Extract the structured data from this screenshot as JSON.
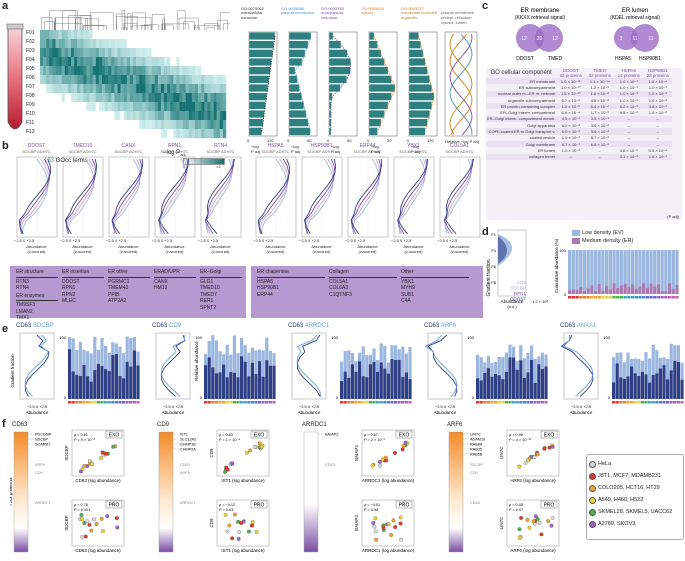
{
  "panels": {
    "a": "a",
    "b": "b",
    "c": "c",
    "d": "d",
    "e": "e",
    "f": "f"
  },
  "panel_a": {
    "fractions": [
      "F01",
      "F02",
      "F03",
      "F04",
      "F05",
      "F06",
      "F07",
      "F08",
      "F09",
      "F10",
      "F11",
      "F12"
    ],
    "heatmap_caption_count": "153",
    "heatmap_caption": " GOcc terms",
    "colorbar_label": "−log P",
    "colorbar_sub": "adj",
    "colorbar_min": "0",
    "colorbar_max": ">2",
    "go_terms": [
      {
        "id": "GO:0070062",
        "name": "extracellular exosome",
        "color": "#333333"
      },
      {
        "id": "GO:0005886",
        "name": "plasma membrane",
        "color": "#4a90c8"
      },
      {
        "id": "GO:0005783",
        "name": "endoplasmic reticulum",
        "color": "#7a4fa3"
      },
      {
        "id": "GO:0005829",
        "name": "cytosol",
        "color": "#e07b1f"
      },
      {
        "id": "GO:0043227",
        "name": "membrane-bounded organelle",
        "color": "#b8871a"
      },
      {
        "id": "overlay",
        "name": "plasma membrane endopl. reticulum cytosol, lumen",
        "color": "#666666"
      }
    ],
    "axis_label": "−log",
    "axis_sub": "P",
    "axis_sub2": "adj",
    "ticks": [
      [
        "0",
        "120"
      ],
      [
        "0",
        "40"
      ],
      [
        "0",
        "40"
      ],
      [
        "0",
        "20"
      ],
      [
        "0",
        "120"
      ]
    ],
    "relative_label": "Relative −log",
    "relative_sub": "P adj"
  },
  "panel_b": {
    "ylabel": "Gradient fraction",
    "xlabel": "Abundance",
    "xlabel_sub": "(z-scored)",
    "xticks": [
      "−2.5",
      "0",
      "+2.5"
    ],
    "legend": [
      "SDCBP",
      "ADH7C"
    ],
    "left_proteins": [
      "DDOST",
      "TMED10",
      "CANX",
      "RPN1",
      "RTN4"
    ],
    "right_proteins": [
      "HSPA5",
      "HSP90B1",
      "ERP44",
      "YBX1",
      "COL5A1"
    ],
    "left_groups": [
      {
        "title": "ER structure",
        "items": [
          "RTN3",
          "RTN4",
          "",
          "TM9SF3",
          "LMAN2",
          "TMX1"
        ]
      },
      {
        "title": "ER insertion",
        "items": [
          "DDOST",
          "RPN1",
          "RPN2",
          "MLEC"
        ]
      },
      {
        "title": "ER other",
        "items": [
          "PGRMC1",
          "TMEM43",
          "PPIB",
          "ATP2A2"
        ]
      },
      {
        "title": "ERAD/UPR",
        "items": [
          "CANX",
          "HM13"
        ]
      },
      {
        "title": "ER–Golgi",
        "items": [
          "GLG1",
          "TMED10",
          "TMED7",
          "RER1",
          "SPNT2"
        ]
      }
    ],
    "ER_enzymes_title": "ER enzymes",
    "right_groups": [
      {
        "title": "ER chaperone",
        "items": [
          "HSPA5",
          "HSP90B1",
          "ERP44"
        ]
      },
      {
        "title": "Collagen",
        "items": [
          "COL5A1",
          "COL6A3",
          "C1QTNF3"
        ]
      },
      {
        "title": "Other",
        "items": [
          "YBX1",
          "MYH9",
          "SUB1",
          "C4A"
        ]
      }
    ]
  },
  "panel_c": {
    "venn_left_title": "ER membrane",
    "venn_left_sub": "(KKXX retrieval signal)",
    "venn_right_title": "ER lumen",
    "venn_right_sub": "(KDEL retrieval signal)",
    "venn_left_values": [
      "12",
      "20",
      "12"
    ],
    "venn_left_labels": [
      "DDOST",
      "TMED"
    ],
    "venn_right_values": [
      "3",
      "11",
      "11"
    ],
    "venn_right_labels": [
      "HSPA5",
      "HSP90B1"
    ],
    "table_title": "GO cellular component",
    "columns": [
      {
        "name": "DDOST",
        "sub": "32 proteins"
      },
      {
        "name": "TMED",
        "sub": "32 proteins"
      },
      {
        "name": "HSPA5",
        "sub": "14 proteins"
      },
      {
        "name": "HSP90B1",
        "sub": "22 proteins"
      }
    ],
    "rows": [
      {
        "label": "ER membrane",
        "vals": [
          "1.0 × 10⁻¹⁶",
          "1.1 × 10⁻¹⁴",
          "1.0 × 10⁻³",
          "1.0 × 10⁻⁴"
        ]
      },
      {
        "label": "ER subcompartment",
        "vals": [
          "1.0 × 10⁻¹⁰",
          "1.2 × 10⁻⁸",
          "1.0 × 10⁻³",
          "1.0 × 10⁻³"
        ]
      },
      {
        "label": "nuclear outer m.–ER m. network",
        "vals": [
          "1.5 × 10⁻¹⁰",
          "1.6 × 10⁻⁸",
          "1.0 × 10⁻³",
          "1.0 × 10⁻³"
        ]
      },
      {
        "label": "organelle subcompartment",
        "vals": [
          "5.7 × 10⁻⁸",
          "4.5 × 10⁻⁸",
          "1.0 × 10⁻³",
          "1.0 × 10⁻³"
        ]
      },
      {
        "label": "ER protein-containing complex",
        "vals": [
          "1.0 × 10⁻⁵",
          "6.4 × 10⁻⁴",
          "6.2 × 10⁻³",
          "3.8 × 10⁻³"
        ]
      },
      {
        "label": "ER–Golgi interm. compartment",
        "vals": [
          "6.9 × 10⁻⁴",
          "1.7 × 10⁻³",
          "9.5 × 10⁻³",
          "1.0 × 10⁻³"
        ]
      },
      {
        "label": "ER–Golgi interm. compartment memb.",
        "vals": [
          "4.5 × 10⁻³",
          "3.5 × 10⁻³",
          "–",
          "–"
        ]
      },
      {
        "label": "Golgi apparatus",
        "vals": [
          "6.2 × 10⁻³",
          "3.9 × 10⁻³",
          "–",
          "–"
        ]
      },
      {
        "label": "COPII-coated ER to Golgi transport v.",
        "vals": [
          "6.0 × 10⁻³",
          "3.6 × 10⁻³",
          "–",
          "–"
        ]
      },
      {
        "label": "coated vesicle",
        "vals": [
          "1.0 × 10⁻³",
          "5.7 × 10⁻³",
          "–",
          "–"
        ]
      },
      {
        "label": "Golgi membrane",
        "vals": [
          "8.7 × 10⁻³",
          "6.8 × 10⁻³",
          "–",
          "–"
        ]
      },
      {
        "label": "ER lumen",
        "vals": [
          "1.0 × 10⁻³",
          "–",
          "4.8 × 10⁻⁵",
          "5.5 × 10⁻⁴"
        ]
      },
      {
        "label": "collagen trimer",
        "vals": [
          "–",
          "–",
          "3.1 × 10⁻³",
          "1.6 × 10⁻³"
        ]
      }
    ],
    "padj_note": "(P adj)"
  },
  "panel_d": {
    "legend": [
      {
        "label": "Low density (EV)",
        "color": "#9bb7e0"
      },
      {
        "label": "Medium density (ER)",
        "color": "#a77bb0"
      }
    ],
    "ylabel": "Gradient fraction",
    "xlabel": "Abundance",
    "xlabel_sub": "(a.u.)",
    "x_scale": "1.2 × 10⁹",
    "yticks": [
      "F1",
      "F4",
      "F6",
      "F8"
    ],
    "labels": [
      "CD9",
      "SDCBP",
      "RPN1",
      "DDOST"
    ],
    "ylabel2": "Cumulative abundance (%)",
    "y2ticks": [
      "0",
      "100"
    ]
  },
  "panel_e": {
    "pairs": [
      {
        "a": "CD63",
        "b": "SDCBP"
      },
      {
        "a": "CD63",
        "b": "CD9"
      },
      {
        "a": "CD63",
        "b": "ARRDC1"
      },
      {
        "a": "CD63",
        "b": "ARF6"
      },
      {
        "a": "CD63",
        "b": "ANXA1"
      }
    ],
    "ylabel": "Gradient fraction",
    "xlabel": "Abundance",
    "xticks": [
      "−2.5",
      "0",
      "+2.5"
    ],
    "rel_label": "Relative abundance",
    "rel_ticks": [
      "0",
      "100"
    ]
  },
  "panel_f": {
    "groups": [
      {
        "name": "CD63",
        "hits": [
          "PDCD6IP",
          "SDCBP",
          "SCARB1"
        ],
        "low": [
          "ARF6",
          "CD9"
        ],
        "low2": [
          "ARRDC1"
        ],
        "exo": {
          "label": "EXO",
          "r": "ρ = 0.81",
          "p": "P = 9 × 10⁻³",
          "x": "CD63",
          "y": "SDCBP"
        },
        "pro": {
          "label": "PRO",
          "r": "ρ = 0.76",
          "p": "P = 0.001",
          "x": "CD63",
          "y": "SDCBP"
        }
      },
      {
        "name": "CD9",
        "hits": [
          "IST1",
          "SLC12A2",
          "CHMP1B",
          "CHMP2A"
        ],
        "low": [
          "CD63",
          "ARF6"
        ],
        "low2": [
          "ARRDC1"
        ],
        "exo": {
          "label": "EXO",
          "r": "ρ = 0.83",
          "p": "P = 1 × 10⁻⁴",
          "x": "IST1",
          "y": "CD9"
        },
        "pro": {
          "label": "PRO",
          "r": "ρ = −0.12",
          "p": "P = 0.63",
          "x": "IST1",
          "y": "CD9"
        }
      },
      {
        "name": "ARRDC1",
        "hits": [
          "BAIAP2"
        ],
        "low": [
          "CD63"
        ],
        "low2": [],
        "exo": {
          "label": "EXO",
          "r": "ρ = 0.67",
          "p": "P = 2 × 10⁻³",
          "x": "ARRDC1",
          "y": "BAIAP2"
        },
        "pro": {
          "label": "PRO",
          "r": "ρ = −0.01",
          "p": "P = 0.98",
          "x": "ARRDC1",
          "y": "BAIAP2"
        }
      },
      {
        "name": "ARF6",
        "hits": [
          "LIN7C",
          "ADAM10",
          "RAB8A",
          "RAB35",
          "RAB5B"
        ],
        "low": [
          "SDCBP",
          "CD9"
        ],
        "low2": [
          "CD63"
        ],
        "exo": {
          "label": "EXO",
          "r": "ρ = 0.98",
          "p": "P = 4 × 10⁻¹³",
          "x": "ARF6",
          "y": "LIN7C"
        },
        "pro": {
          "label": "PRO",
          "r": "ρ = 0.45",
          "p": "P = 0.07",
          "x": "ARF6",
          "y": "LIN7C"
        }
      }
    ],
    "tss_label": "TSS proteins",
    "log_label": "(log",
    "log_sub": "abundance)",
    "cell_legend": [
      {
        "label": "HeLa",
        "color": "#d9d9d9"
      },
      {
        "label": "J8T1, MCF7, MDAMB231",
        "color": "#e3362f"
      },
      {
        "label": "COLO205, HCT16, HT29",
        "color": "#f2a22e"
      },
      {
        "label": "A549, H460, H522",
        "color": "#e8d53c"
      },
      {
        "label": "SKMEL28, SKMEL5, UACC62",
        "color": "#4bb04a"
      },
      {
        "label": "A2780, SKOV3",
        "color": "#9a66c7"
      }
    ]
  }
}
